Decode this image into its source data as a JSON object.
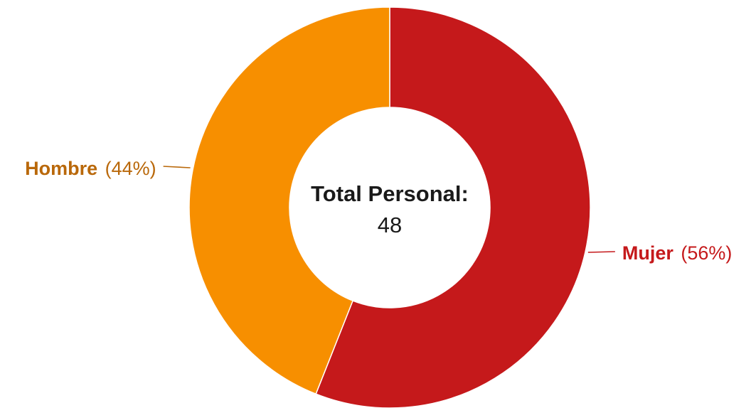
{
  "chart_data": {
    "type": "pie",
    "variant": "donut",
    "categories": [
      "Hombre",
      "Mujer"
    ],
    "values": [
      44,
      56
    ],
    "labels": [
      {
        "name": "Hombre",
        "percent": "(44%)"
      },
      {
        "name": "Mujer",
        "percent": "(56%)"
      }
    ],
    "colors": [
      "#F78F00",
      "#C5191B"
    ],
    "label_colors": [
      "#B9680A",
      "#C5191B"
    ],
    "center": {
      "title": "Total Personal:",
      "value": "48"
    },
    "start_at": "top",
    "direction": "clockwise",
    "legend": "none"
  }
}
